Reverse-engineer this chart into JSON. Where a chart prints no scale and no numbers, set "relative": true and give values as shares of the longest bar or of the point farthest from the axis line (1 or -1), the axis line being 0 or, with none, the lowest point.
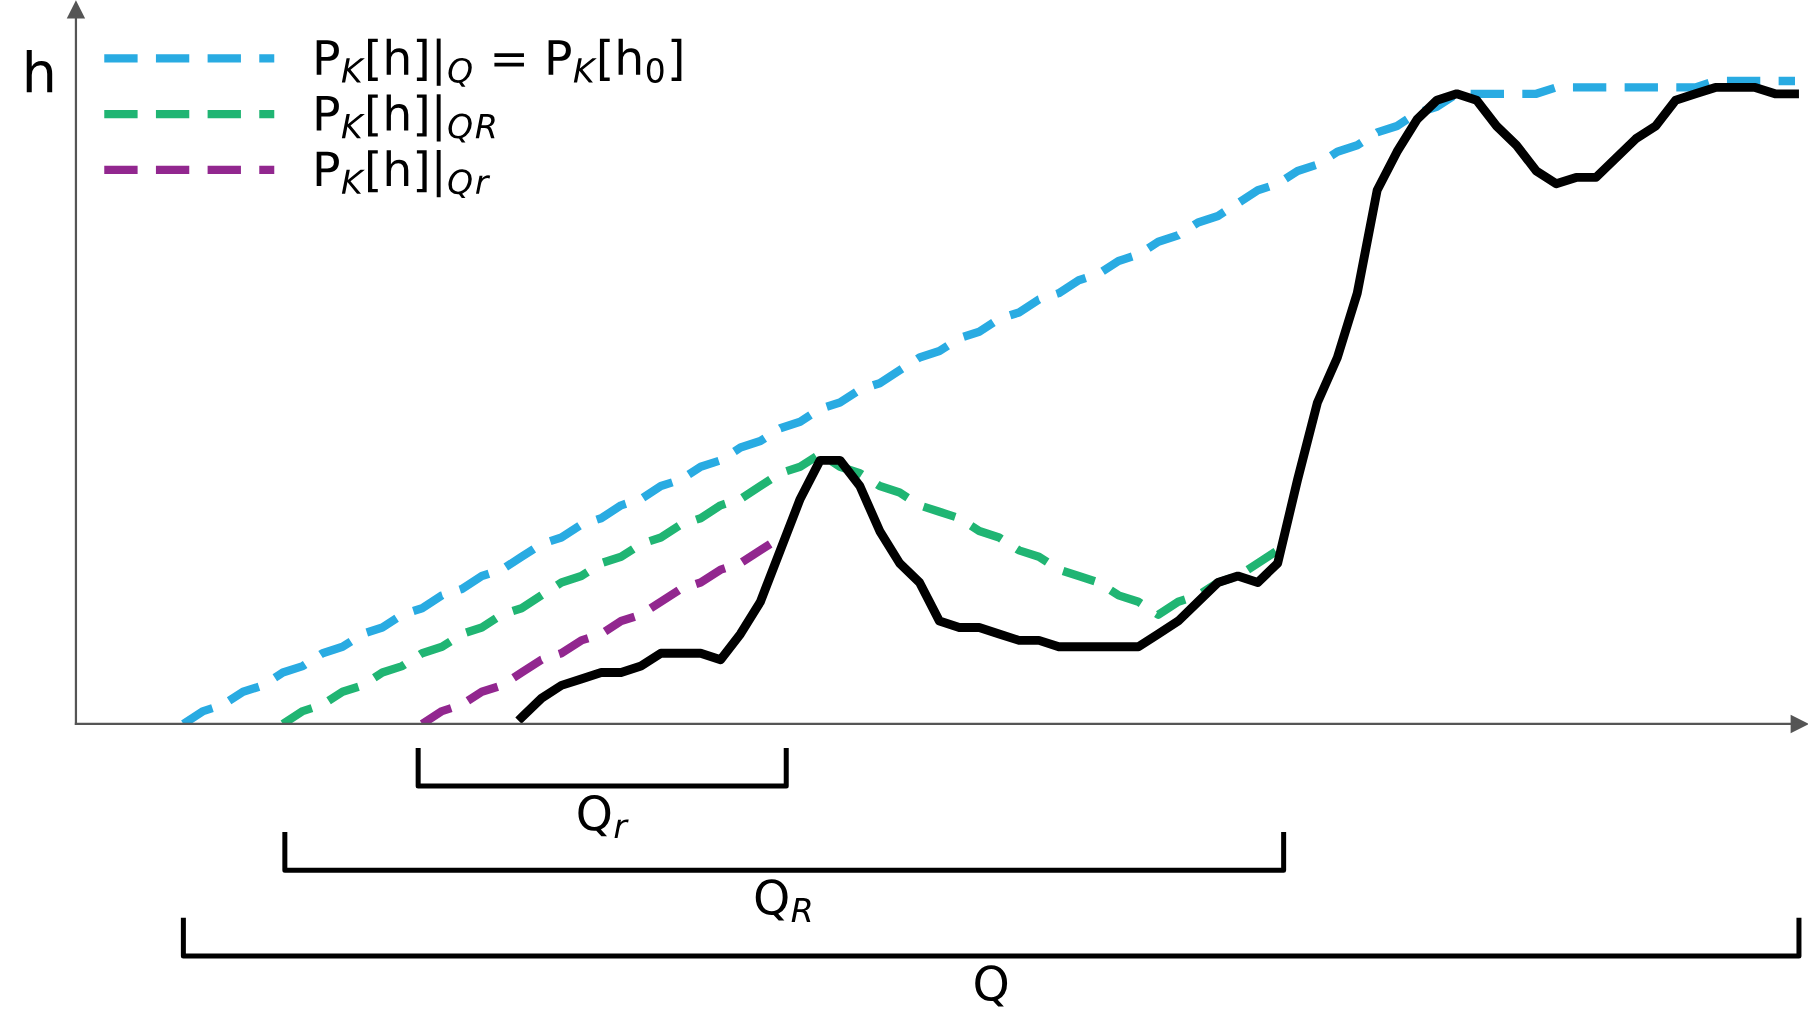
{
  "chart_data": {
    "type": "line",
    "relative": true,
    "ylabel": "h",
    "legend": "top left",
    "categories": [
      null,
      null,
      null,
      null,
      null,
      null,
      null,
      null,
      null,
      null,
      null,
      null,
      null,
      null,
      null,
      null,
      null,
      null,
      null,
      null,
      null,
      null,
      null,
      null,
      null,
      null,
      null,
      null,
      null,
      null,
      null,
      null,
      null,
      null,
      null,
      null,
      null,
      null,
      null,
      null,
      null,
      null,
      null,
      null,
      null,
      null,
      null,
      null,
      null,
      null,
      null,
      null,
      null,
      null,
      null,
      null,
      null,
      null,
      null,
      null,
      null,
      null,
      null,
      null,
      null,
      null,
      null,
      null,
      null,
      null,
      null,
      null,
      null,
      null,
      null,
      null,
      null,
      null,
      null,
      null,
      null,
      null
    ],
    "series": [
      {
        "name": "P$_{K}$[h]|$_{Q}$ = P$_{K}$[h$_{0}$]",
        "color": "#29abe2",
        "line_style": "dashed",
        "values": [
          0,
          0.02,
          0.03,
          0.05,
          0.06,
          0.08,
          0.09,
          0.11,
          0.12,
          0.14,
          0.15,
          0.17,
          0.18,
          0.2,
          0.21,
          0.23,
          0.24,
          0.26,
          0.28,
          0.29,
          0.31,
          0.32,
          0.34,
          0.35,
          0.37,
          0.38,
          0.4,
          0.41,
          0.43,
          0.44,
          0.46,
          0.47,
          0.49,
          0.5,
          0.52,
          0.53,
          0.55,
          0.57,
          0.58,
          0.6,
          0.61,
          0.63,
          0.64,
          0.66,
          0.67,
          0.69,
          0.7,
          0.72,
          0.73,
          0.75,
          0.76,
          0.78,
          0.79,
          0.81,
          0.83,
          0.84,
          0.86,
          0.87,
          0.89,
          0.9,
          0.92,
          0.93,
          0.95,
          0.96,
          0.98,
          0.98,
          0.98,
          0.98,
          0.98,
          0.99,
          0.99,
          0.99,
          0.99,
          0.99,
          0.99,
          0.99,
          0.99,
          1,
          1,
          1,
          1,
          1
        ]
      },
      {
        "name": "P$_{K}$[h]|$_{Q}$$_{R}$",
        "color": "#20b573",
        "line_style": "dashed",
        "values": [
          null,
          null,
          null,
          null,
          null,
          0,
          0.02,
          0.03,
          0.05,
          0.06,
          0.08,
          0.09,
          0.11,
          0.12,
          0.14,
          0.15,
          0.17,
          0.18,
          0.2,
          0.22,
          0.23,
          0.25,
          0.26,
          0.28,
          0.29,
          0.31,
          0.32,
          0.34,
          0.35,
          0.37,
          0.39,
          0.4,
          0.42,
          0.4,
          0.39,
          0.37,
          0.36,
          0.34,
          0.33,
          0.32,
          0.3,
          0.29,
          0.27,
          0.26,
          0.24,
          0.23,
          0.22,
          0.2,
          0.19,
          0.17,
          0.19,
          0.2,
          0.22,
          0.23,
          0.25,
          0.27,
          null,
          null,
          null,
          null,
          null,
          null,
          null,
          null,
          null,
          null,
          null,
          null,
          null,
          null,
          null,
          null,
          null,
          null,
          null,
          null,
          null,
          null,
          null,
          null,
          null,
          null
        ]
      },
      {
        "name": "P$_{K}$[h]|$_{Q}$$_{r}$",
        "color": "#92278f",
        "line_style": "dashed",
        "values": [
          null,
          null,
          null,
          null,
          null,
          null,
          null,
          null,
          null,
          null,
          null,
          null,
          0,
          0.02,
          0.03,
          0.05,
          0.06,
          0.08,
          0.1,
          0.11,
          0.13,
          0.14,
          0.16,
          0.17,
          0.19,
          0.21,
          0.22,
          0.24,
          0.25,
          0.27,
          0.29,
          null,
          null,
          null,
          null,
          null,
          null,
          null,
          null,
          null,
          null,
          null,
          null,
          null,
          null,
          null,
          null,
          null,
          null,
          null,
          null,
          null,
          null,
          null,
          null,
          null,
          null,
          null,
          null,
          null,
          null,
          null,
          null,
          null,
          null,
          null,
          null,
          null,
          null,
          null,
          null,
          null,
          null,
          null,
          null,
          null,
          null,
          null,
          null,
          null,
          null,
          null
        ]
      },
      {
        "color": "#000000",
        "line_style": "solid",
        "values": [
          null,
          null,
          null,
          null,
          null,
          null,
          null,
          null,
          null,
          null,
          null,
          null,
          null,
          null,
          null,
          null,
          null,
          0.01,
          0.04,
          0.06,
          0.07,
          0.08,
          0.08,
          0.09,
          0.11,
          0.11,
          0.11,
          0.1,
          0.14,
          0.19,
          0.27,
          0.35,
          0.41,
          0.41,
          0.37,
          0.3,
          0.25,
          0.22,
          0.16,
          0.15,
          0.15,
          0.14,
          0.13,
          0.13,
          0.12,
          0.12,
          0.12,
          0.12,
          0.12,
          0.14,
          0.16,
          0.19,
          0.22,
          0.23,
          0.22,
          0.25,
          0.38,
          0.5,
          0.57,
          0.67,
          0.83,
          0.89,
          0.94,
          0.97,
          0.98,
          0.97,
          0.93,
          0.9,
          0.86,
          0.84,
          0.85,
          0.85,
          0.88,
          0.91,
          0.93,
          0.97,
          0.98,
          0.99,
          0.99,
          0.99,
          0.98,
          0.98
        ]
      }
    ],
    "annotations": [
      "Q$_{r}$",
      "Q$_{R}$",
      "Q"
    ]
  }
}
